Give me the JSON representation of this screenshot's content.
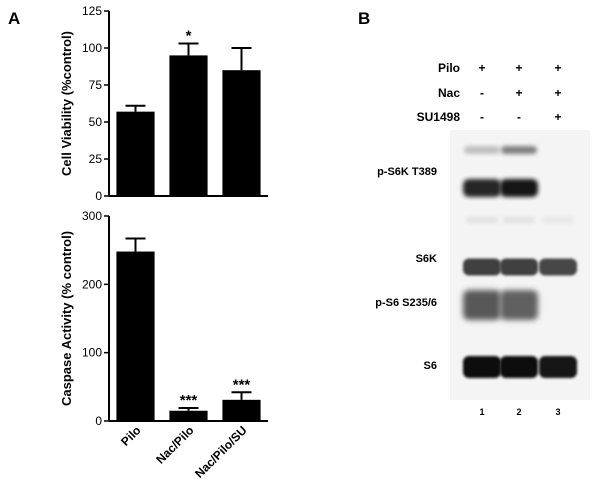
{
  "panel_a_label": "A",
  "panel_b_label": "B",
  "chart_data": [
    {
      "type": "bar",
      "ylabel": "Cell Viability  (%control)",
      "categories": [
        "Pilo",
        "Nac/Pilo",
        "Nac/Pilo/SU"
      ],
      "values": [
        57,
        95,
        85
      ],
      "errors": [
        4,
        8,
        15
      ],
      "annotations": [
        "",
        "*",
        ""
      ],
      "ylim": [
        0,
        125
      ],
      "yticks": [
        0,
        25,
        50,
        75,
        100,
        125
      ]
    },
    {
      "type": "bar",
      "ylabel": "Caspase Activity  (% control)",
      "categories": [
        "Pilo",
        "Nac/Pilo",
        "Nac/Pilo/SU"
      ],
      "values": [
        248,
        15,
        31
      ],
      "errors": [
        19,
        4,
        11
      ],
      "annotations": [
        "",
        "***",
        "***"
      ],
      "ylim": [
        0,
        300
      ],
      "yticks": [
        0,
        100,
        200,
        300
      ]
    }
  ],
  "blot": {
    "treatments": [
      {
        "name": "Pilo",
        "signs": [
          "+",
          "+",
          "+"
        ]
      },
      {
        "name": "Nac",
        "signs": [
          "-",
          "+",
          "+"
        ]
      },
      {
        "name": "SU1498",
        "signs": [
          "-",
          "-",
          "+"
        ]
      }
    ],
    "rows": [
      {
        "label": "p-S6K T389",
        "intensity": [
          0.85,
          0.92,
          0.0
        ]
      },
      {
        "label": "S6K",
        "intensity": [
          0.75,
          0.75,
          0.72
        ]
      },
      {
        "label": "p-S6 S235/6",
        "intensity": [
          0.65,
          0.62,
          0.0
        ]
      },
      {
        "label": "S6",
        "intensity": [
          0.95,
          0.95,
          0.92
        ]
      }
    ],
    "lanes": [
      "1",
      "2",
      "3"
    ]
  }
}
